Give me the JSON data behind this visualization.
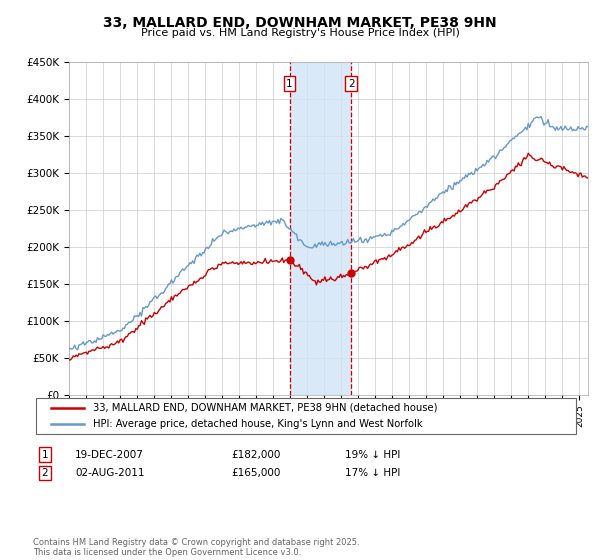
{
  "title": "33, MALLARD END, DOWNHAM MARKET, PE38 9HN",
  "subtitle": "Price paid vs. HM Land Registry's House Price Index (HPI)",
  "ylabel_ticks": [
    "£0",
    "£50K",
    "£100K",
    "£150K",
    "£200K",
    "£250K",
    "£300K",
    "£350K",
    "£400K",
    "£450K"
  ],
  "ylim": [
    0,
    450000
  ],
  "xlim_start": 1995.0,
  "xlim_end": 2025.5,
  "legend_line1": "33, MALLARD END, DOWNHAM MARKET, PE38 9HN (detached house)",
  "legend_line2": "HPI: Average price, detached house, King's Lynn and West Norfolk",
  "transaction1_date": "19-DEC-2007",
  "transaction1_price": "£182,000",
  "transaction1_hpi": "19% ↓ HPI",
  "transaction1_year": 2007.96,
  "transaction1_value": 182000,
  "transaction2_date": "02-AUG-2011",
  "transaction2_price": "£165,000",
  "transaction2_hpi": "17% ↓ HPI",
  "transaction2_year": 2011.58,
  "transaction2_value": 165000,
  "shaded_region_color": "#d0e4f7",
  "vline_color": "#cc0000",
  "hpi_line_color": "#6699cc",
  "price_line_color": "#cc0000",
  "footnote": "Contains HM Land Registry data © Crown copyright and database right 2025.\nThis data is licensed under the Open Government Licence v3.0.",
  "background_color": "#ffffff",
  "grid_color": "#cccccc"
}
